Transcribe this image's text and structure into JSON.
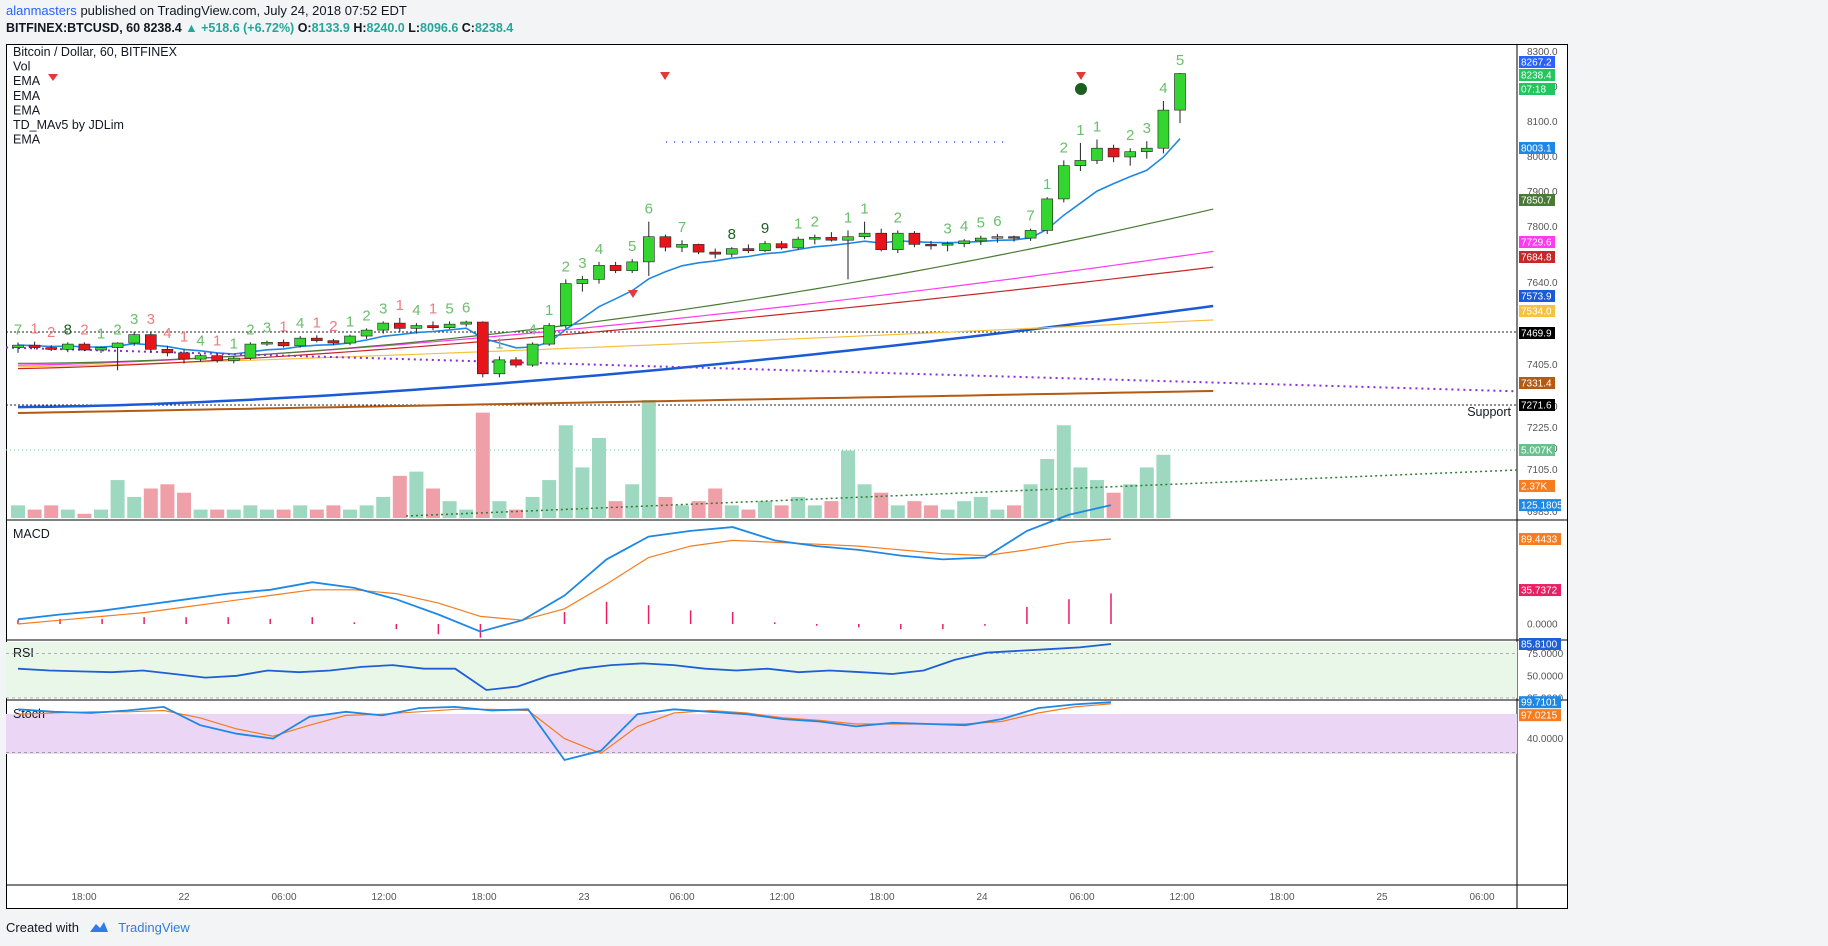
{
  "header": {
    "author": "alanmasters",
    "published": "published on TradingView.com, July 24, 2018 07:52 EDT",
    "symbol": "BITFINEX:BTCUSD, 60",
    "last": "8238.4",
    "change": "▲ +518.6 (+6.72%)",
    "o_label": "O:",
    "o_value": "8133.9",
    "h_label": "H:",
    "h_value": "8240.0",
    "l_label": "L:",
    "l_value": "8096.6",
    "c_label": "C:",
    "c_value": "8238.4"
  },
  "footer": {
    "created_with": "Created with",
    "brand": "TradingView"
  },
  "legend": [
    "Bitcoin / Dollar, 60, BITFINEX",
    "Vol",
    "EMA",
    "EMA",
    "EMA",
    "TD_MAv5 by JDLim",
    "EMA"
  ],
  "colors": {
    "up": "#32d62f",
    "down": "#e8141a",
    "vol_up": "#9fd8c0",
    "vol_down": "#ef9fa8",
    "ema_fast": "#1e88e5",
    "ema_green": "#4a7a33",
    "ema_magenta": "#ff3bf2",
    "ema_red": "#c62828",
    "ema_blue": "#1a5ad6",
    "ema_yellow": "#f5c242",
    "ema_brown": "#b45a12",
    "purple_dot": "#8b2bd9",
    "macd": "#1e88e5",
    "signal": "#f57c20",
    "hist": "#e91e63",
    "rsi": "#1e5fd6",
    "stoch_k": "#1e88e5",
    "stoch_d": "#f57c20"
  },
  "chart_data": [
    {
      "type": "candlestick",
      "title": "Bitcoin / Dollar, 60, BITFINEX",
      "x_tick_labels": [
        "18:00",
        "22",
        "06:00",
        "12:00",
        "18:00",
        "23",
        "06:00",
        "12:00",
        "18:00",
        "24",
        "06:00",
        "12:00",
        "18:00",
        "25",
        "06:00"
      ],
      "y_tick_labels": [
        "8300.0",
        "8200.0",
        "8100.0",
        "8000.0",
        "7900.0",
        "7800.0",
        "7640.0",
        "7405.0",
        "7285.0",
        "7225.0",
        "7165.0",
        "7105.0",
        "6985.0"
      ],
      "candles": [
        {
          "o": 7455,
          "h": 7470,
          "l": 7440,
          "c": 7462
        },
        {
          "o": 7462,
          "h": 7472,
          "l": 7450,
          "c": 7455
        },
        {
          "o": 7455,
          "h": 7462,
          "l": 7445,
          "c": 7450
        },
        {
          "o": 7450,
          "h": 7470,
          "l": 7442,
          "c": 7465
        },
        {
          "o": 7465,
          "h": 7470,
          "l": 7445,
          "c": 7448
        },
        {
          "o": 7448,
          "h": 7458,
          "l": 7440,
          "c": 7455
        },
        {
          "o": 7455,
          "h": 7470,
          "l": 7390,
          "c": 7468
        },
        {
          "o": 7468,
          "h": 7500,
          "l": 7460,
          "c": 7492
        },
        {
          "o": 7492,
          "h": 7500,
          "l": 7440,
          "c": 7450
        },
        {
          "o": 7450,
          "h": 7460,
          "l": 7430,
          "c": 7440
        },
        {
          "o": 7440,
          "h": 7450,
          "l": 7410,
          "c": 7422
        },
        {
          "o": 7422,
          "h": 7438,
          "l": 7415,
          "c": 7432
        },
        {
          "o": 7432,
          "h": 7438,
          "l": 7412,
          "c": 7418
        },
        {
          "o": 7418,
          "h": 7430,
          "l": 7410,
          "c": 7425
        },
        {
          "o": 7425,
          "h": 7470,
          "l": 7420,
          "c": 7465
        },
        {
          "o": 7465,
          "h": 7475,
          "l": 7460,
          "c": 7470
        },
        {
          "o": 7470,
          "h": 7478,
          "l": 7455,
          "c": 7460
        },
        {
          "o": 7460,
          "h": 7488,
          "l": 7455,
          "c": 7482
        },
        {
          "o": 7482,
          "h": 7490,
          "l": 7470,
          "c": 7475
        },
        {
          "o": 7475,
          "h": 7480,
          "l": 7462,
          "c": 7468
        },
        {
          "o": 7468,
          "h": 7492,
          "l": 7462,
          "c": 7488
        },
        {
          "o": 7488,
          "h": 7510,
          "l": 7480,
          "c": 7505
        },
        {
          "o": 7505,
          "h": 7530,
          "l": 7495,
          "c": 7525
        },
        {
          "o": 7525,
          "h": 7540,
          "l": 7500,
          "c": 7510
        },
        {
          "o": 7510,
          "h": 7525,
          "l": 7495,
          "c": 7518
        },
        {
          "o": 7518,
          "h": 7530,
          "l": 7505,
          "c": 7512
        },
        {
          "o": 7512,
          "h": 7530,
          "l": 7508,
          "c": 7522
        },
        {
          "o": 7522,
          "h": 7532,
          "l": 7515,
          "c": 7528
        },
        {
          "o": 7528,
          "h": 7530,
          "l": 7370,
          "c": 7380
        },
        {
          "o": 7380,
          "h": 7430,
          "l": 7370,
          "c": 7420
        },
        {
          "o": 7420,
          "h": 7428,
          "l": 7398,
          "c": 7405
        },
        {
          "o": 7405,
          "h": 7470,
          "l": 7400,
          "c": 7465
        },
        {
          "o": 7465,
          "h": 7525,
          "l": 7460,
          "c": 7518
        },
        {
          "o": 7518,
          "h": 7650,
          "l": 7510,
          "c": 7638
        },
        {
          "o": 7638,
          "h": 7660,
          "l": 7615,
          "c": 7650
        },
        {
          "o": 7650,
          "h": 7700,
          "l": 7638,
          "c": 7690
        },
        {
          "o": 7690,
          "h": 7700,
          "l": 7668,
          "c": 7675
        },
        {
          "o": 7675,
          "h": 7708,
          "l": 7668,
          "c": 7700
        },
        {
          "o": 7700,
          "h": 7815,
          "l": 7660,
          "c": 7772
        },
        {
          "o": 7772,
          "h": 7778,
          "l": 7730,
          "c": 7742
        },
        {
          "o": 7742,
          "h": 7762,
          "l": 7728,
          "c": 7750
        },
        {
          "o": 7750,
          "h": 7752,
          "l": 7722,
          "c": 7728
        },
        {
          "o": 7728,
          "h": 7738,
          "l": 7710,
          "c": 7722
        },
        {
          "o": 7722,
          "h": 7742,
          "l": 7714,
          "c": 7738
        },
        {
          "o": 7738,
          "h": 7750,
          "l": 7725,
          "c": 7732
        },
        {
          "o": 7732,
          "h": 7760,
          "l": 7728,
          "c": 7752
        },
        {
          "o": 7752,
          "h": 7760,
          "l": 7735,
          "c": 7740
        },
        {
          "o": 7740,
          "h": 7772,
          "l": 7735,
          "c": 7765
        },
        {
          "o": 7765,
          "h": 7778,
          "l": 7750,
          "c": 7770
        },
        {
          "o": 7770,
          "h": 7785,
          "l": 7758,
          "c": 7762
        },
        {
          "o": 7762,
          "h": 7790,
          "l": 7650,
          "c": 7772
        },
        {
          "o": 7772,
          "h": 7815,
          "l": 7765,
          "c": 7782
        },
        {
          "o": 7782,
          "h": 7795,
          "l": 7730,
          "c": 7735
        },
        {
          "o": 7735,
          "h": 7790,
          "l": 7725,
          "c": 7782
        },
        {
          "o": 7782,
          "h": 7788,
          "l": 7742,
          "c": 7750
        },
        {
          "o": 7750,
          "h": 7760,
          "l": 7735,
          "c": 7748
        },
        {
          "o": 7748,
          "h": 7758,
          "l": 7730,
          "c": 7752
        },
        {
          "o": 7752,
          "h": 7765,
          "l": 7742,
          "c": 7760
        },
        {
          "o": 7760,
          "h": 7775,
          "l": 7748,
          "c": 7768
        },
        {
          "o": 7768,
          "h": 7780,
          "l": 7755,
          "c": 7772
        },
        {
          "o": 7772,
          "h": 7775,
          "l": 7758,
          "c": 7768
        },
        {
          "o": 7768,
          "h": 7795,
          "l": 7760,
          "c": 7790
        },
        {
          "o": 7790,
          "h": 7885,
          "l": 7780,
          "c": 7880
        },
        {
          "o": 7880,
          "h": 7990,
          "l": 7870,
          "c": 7975
        },
        {
          "o": 7975,
          "h": 8040,
          "l": 7960,
          "c": 7990
        },
        {
          "o": 7990,
          "h": 8050,
          "l": 7980,
          "c": 8025
        },
        {
          "o": 8025,
          "h": 8035,
          "l": 7985,
          "c": 8000
        },
        {
          "o": 8000,
          "h": 8025,
          "l": 7975,
          "c": 8015
        },
        {
          "o": 8015,
          "h": 8045,
          "l": 7995,
          "c": 8025
        },
        {
          "o": 8025,
          "h": 8160,
          "l": 8010,
          "c": 8133.9
        },
        {
          "o": 8133.9,
          "h": 8240,
          "l": 8096.6,
          "c": 8238.4
        }
      ],
      "ema_labels": [
        "8267.2",
        "8238.4",
        "07:18",
        "8003.1",
        "7850.7",
        "7729.6",
        "7684.8",
        "7573.9",
        "7534.0",
        "7469.9",
        "7331.4",
        "7271.6",
        "5.007K",
        "2.37K"
      ],
      "support_label": "Support",
      "volumes": [
        3,
        2,
        3,
        2,
        1,
        2,
        9,
        5,
        7,
        8,
        6,
        2,
        2,
        2,
        3,
        2,
        2,
        3,
        2,
        3,
        2,
        3,
        5,
        10,
        11,
        7,
        4,
        2,
        25,
        4,
        2,
        5,
        9,
        22,
        12,
        19,
        4,
        8,
        28,
        5,
        3,
        4,
        7,
        3,
        2,
        4,
        3,
        5,
        3,
        4,
        16,
        8,
        6,
        3,
        4,
        3,
        2,
        4,
        5,
        2,
        3,
        8,
        14,
        22,
        12,
        9,
        6,
        8,
        12,
        15
      ],
      "td_counts_up": [
        "7",
        "8",
        "1",
        "2",
        "3",
        "4",
        "1",
        "2",
        "3",
        "4",
        "1",
        "2",
        "3",
        "4",
        "5",
        "6",
        "1",
        "4",
        "1",
        "2",
        "3",
        "4",
        "5",
        "6",
        "7",
        "8",
        "9",
        "1",
        "2",
        "1",
        "1",
        "2",
        "3",
        "4",
        "5",
        "6",
        "7",
        "1",
        "2",
        "1",
        "1",
        "2",
        "3",
        "4",
        "5",
        "6",
        "7",
        "8",
        "9",
        "1"
      ],
      "td_counts_down": [
        "1",
        "2",
        "2",
        "3",
        "4",
        "1",
        "1",
        "1",
        "1",
        "2",
        "1",
        "1"
      ]
    },
    {
      "type": "line",
      "title": "MACD",
      "y_tick_labels": [
        "125.1805",
        "89.4433",
        "35.7372",
        "0.0000"
      ],
      "series": [
        {
          "name": "MACD",
          "values": [
            5,
            10,
            14,
            20,
            26,
            32,
            36,
            44,
            38,
            26,
            10,
            -8,
            4,
            30,
            68,
            92,
            98,
            102,
            88,
            82,
            78,
            72,
            68,
            70,
            98,
            115,
            125.18
          ]
        },
        {
          "name": "Signal",
          "values": [
            0,
            4,
            8,
            12,
            18,
            24,
            30,
            36,
            36,
            32,
            22,
            8,
            4,
            16,
            42,
            70,
            82,
            88,
            86,
            84,
            82,
            78,
            74,
            72,
            78,
            86,
            89.44
          ]
        }
      ]
    },
    {
      "type": "line",
      "title": "RSI",
      "y_tick_labels": [
        "85.8100",
        "75.0000",
        "50.0000",
        "25.0000"
      ],
      "values": [
        58,
        56,
        55,
        54,
        56,
        52,
        48,
        50,
        56,
        54,
        56,
        60,
        62,
        58,
        58,
        34,
        38,
        50,
        58,
        62,
        64,
        62,
        58,
        56,
        58,
        54,
        56,
        54,
        52,
        56,
        68,
        76,
        78,
        80,
        82,
        85.81
      ]
    },
    {
      "type": "line",
      "title": "Stoch",
      "y_tick_labels": [
        "99.7101",
        "97.0215",
        "40.0000"
      ],
      "series": [
        {
          "name": "K",
          "values": [
            88,
            84,
            82,
            86,
            92,
            62,
            48,
            40,
            76,
            84,
            78,
            90,
            92,
            86,
            88,
            5,
            20,
            80,
            88,
            84,
            80,
            72,
            68,
            60,
            66,
            64,
            62,
            72,
            90,
            96,
            99.71
          ]
        },
        {
          "name": "D",
          "values": [
            80,
            82,
            84,
            84,
            86,
            74,
            56,
            44,
            62,
            78,
            80,
            84,
            88,
            88,
            86,
            40,
            16,
            60,
            82,
            86,
            82,
            74,
            70,
            64,
            64,
            64,
            64,
            68,
            82,
            92,
            97.02
          ]
        }
      ]
    }
  ]
}
